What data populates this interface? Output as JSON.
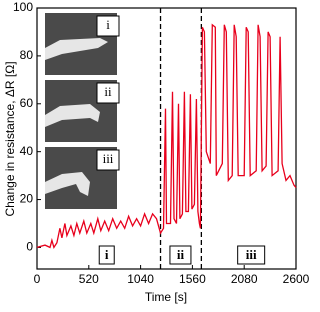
{
  "chart_data": {
    "type": "line",
    "x_label": "Time [s]",
    "y_label": "Change in resistance, ΔR [Ω]",
    "xlim": [
      0,
      2600
    ],
    "xticks": [
      0,
      520,
      1040,
      1560,
      2080,
      2600
    ],
    "ylim": [
      -9,
      100
    ],
    "yticks": [
      0,
      20,
      40,
      60,
      80,
      100
    ],
    "dividers": [
      1240,
      1650
    ],
    "region_labels": [
      {
        "x": 700,
        "label": "i"
      },
      {
        "x": 1440,
        "label": "ii"
      },
      {
        "x": 2150,
        "label": "iii"
      }
    ],
    "inset_labels": [
      "i",
      "ii",
      "iii"
    ],
    "series": [
      {
        "color": "#e8001c",
        "x": [
          0,
          80,
          130,
          150,
          170,
          200,
          230,
          250,
          280,
          300,
          340,
          370,
          400,
          430,
          470,
          500,
          540,
          570,
          610,
          640,
          680,
          720,
          760,
          800,
          840,
          880,
          920,
          960,
          1000,
          1040,
          1080,
          1120,
          1160,
          1200,
          1240,
          1270,
          1290,
          1300,
          1340,
          1360,
          1375,
          1400,
          1420,
          1435,
          1460,
          1480,
          1495,
          1520,
          1540,
          1555,
          1580,
          1600,
          1615,
          1630,
          1640,
          1660,
          1680,
          1700,
          1740,
          1760,
          1790,
          1800,
          1860,
          1880,
          1900,
          1920,
          1960,
          1980,
          2000,
          2020,
          2080,
          2100,
          2120,
          2140,
          2200,
          2220,
          2240,
          2260,
          2300,
          2320,
          2340,
          2360,
          2420,
          2440,
          2460,
          2500,
          2540,
          2580,
          2600
        ],
        "values": [
          0,
          1,
          0,
          3,
          0,
          2,
          8,
          4,
          10,
          5,
          9,
          5,
          10,
          6,
          11,
          6,
          10,
          6,
          12,
          7,
          11,
          7,
          12,
          8,
          11,
          8,
          13,
          9,
          12,
          9,
          14,
          10,
          14,
          12,
          6,
          8,
          58,
          10,
          10,
          65,
          12,
          10,
          60,
          12,
          14,
          65,
          15,
          15,
          64,
          16,
          18,
          62,
          15,
          10,
          8,
          92,
          90,
          40,
          35,
          93,
          92,
          30,
          35,
          93,
          90,
          28,
          30,
          93,
          88,
          30,
          30,
          92,
          90,
          30,
          32,
          93,
          88,
          32,
          34,
          90,
          88,
          30,
          32,
          88,
          35,
          28,
          30,
          26,
          25
        ]
      }
    ]
  }
}
